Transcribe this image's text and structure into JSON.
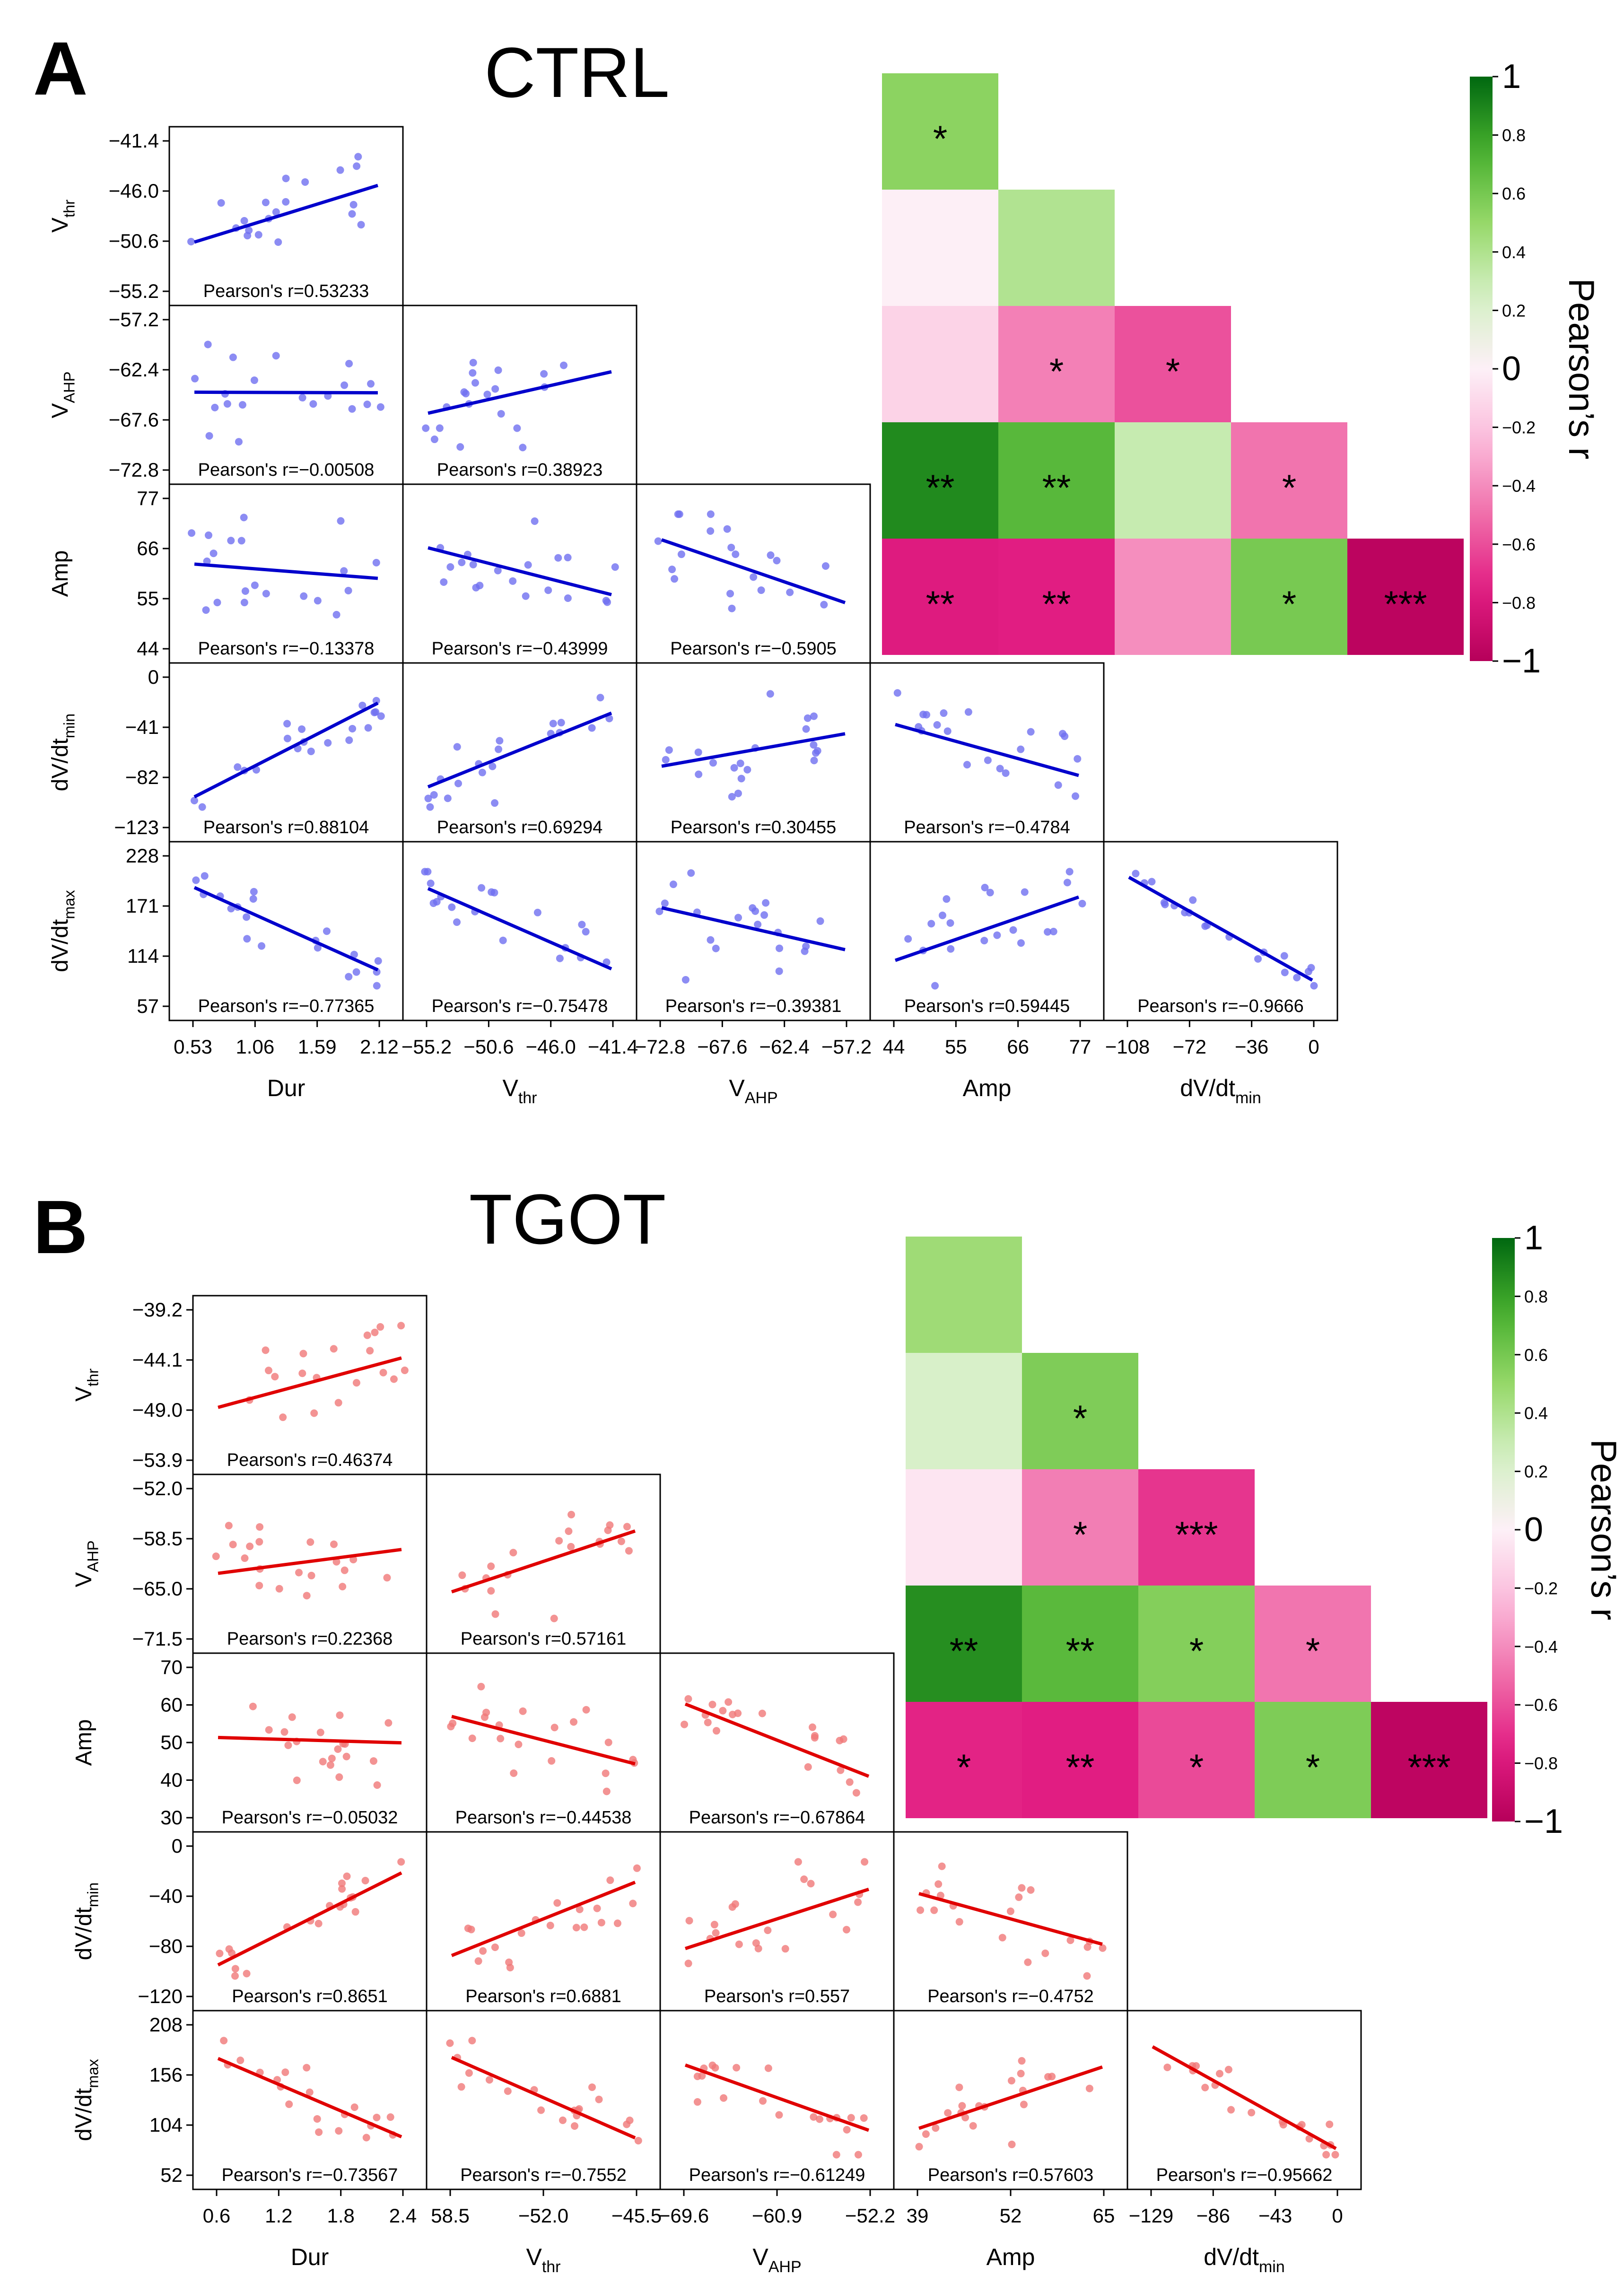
{
  "figure": {
    "colorbar_label": "Pearson’s r",
    "colorbar_ticks": [
      "1",
      "0.8",
      "0.6",
      "0.4",
      "0.2",
      "0",
      "−0.2",
      "−0.4",
      "−0.6",
      "−0.8",
      "−1"
    ],
    "variables": [
      "Dur",
      "Vthr",
      "VAHP",
      "Amp",
      "dV/dtmin",
      "dV/dtmax"
    ]
  },
  "chart_data": [
    {
      "panel": "A",
      "title": "CTRL",
      "type": "scatter",
      "point_color": "#6f6ff0",
      "line_color": "#0000cc",
      "row_labels": [
        {
          "base": "V",
          "sub": "thr"
        },
        {
          "base": "V",
          "sub": "AHP"
        },
        {
          "base": "Amp",
          "sub": ""
        },
        {
          "base": "dV/dt",
          "sub": "min"
        },
        {
          "base": "dV/dt",
          "sub": "max"
        }
      ],
      "col_labels": [
        {
          "base": "Dur",
          "sub": ""
        },
        {
          "base": "V",
          "sub": "thr"
        },
        {
          "base": "V",
          "sub": "AHP"
        },
        {
          "base": "Amp",
          "sub": ""
        },
        {
          "base": "dV/dt",
          "sub": "min"
        }
      ],
      "y_ticks": [
        [
          "−41.4",
          "−46.0",
          "−50.6",
          "−55.2"
        ],
        [
          "−57.2",
          "−62.4",
          "−67.6",
          "−72.8"
        ],
        [
          "77",
          "66",
          "55",
          "44"
        ],
        [
          "0",
          "−41",
          "−82",
          "−123"
        ],
        [
          "228",
          "171",
          "114",
          "57"
        ]
      ],
      "x_ticks": [
        [
          "0.53",
          "1.06",
          "1.59",
          "2.12"
        ],
        [
          "−55.2",
          "−50.6",
          "−46.0",
          "−41.4"
        ],
        [
          "−72.8",
          "−67.6",
          "−62.4",
          "−57.2"
        ],
        [
          "44",
          "55",
          "66",
          "77"
        ],
        [
          "−108",
          "−72",
          "−36",
          "0"
        ]
      ],
      "cells": [
        [
          {
            "r": 0.53233,
            "label": "Pearson's r=0.53233",
            "stars": "*"
          }
        ],
        [
          {
            "r": -0.00508,
            "label": "Pearson's r=−0.00508",
            "stars": ""
          },
          {
            "r": 0.38923,
            "label": "Pearson's r=0.38923",
            "stars": ""
          }
        ],
        [
          {
            "r": -0.13378,
            "label": "Pearson's r=−0.13378",
            "stars": ""
          },
          {
            "r": -0.43999,
            "label": "Pearson's r=−0.43999",
            "stars": "*"
          },
          {
            "r": -0.5905,
            "label": "Pearson's r=−0.5905",
            "stars": "*"
          }
        ],
        [
          {
            "r": 0.88104,
            "label": "Pearson's r=0.88104",
            "stars": "**"
          },
          {
            "r": 0.69294,
            "label": "Pearson's r=0.69294",
            "stars": "**"
          },
          {
            "r": 0.30455,
            "label": "Pearson's r=0.30455",
            "stars": ""
          },
          {
            "r": -0.4784,
            "label": "Pearson's r=−0.4784",
            "stars": "*"
          }
        ],
        [
          {
            "r": -0.77365,
            "label": "Pearson's r=−0.77365",
            "stars": "**"
          },
          {
            "r": -0.75478,
            "label": "Pearson's r=−0.75478",
            "stars": "**"
          },
          {
            "r": -0.39381,
            "label": "Pearson's r=−0.39381",
            "stars": ""
          },
          {
            "r": 0.59445,
            "label": "Pearson's r=0.59445",
            "stars": "*"
          },
          {
            "r": -0.9666,
            "label": "Pearson's r=−0.9666",
            "stars": "***"
          }
        ]
      ]
    },
    {
      "panel": "B",
      "title": "TGOT",
      "type": "scatter",
      "point_color": "#f07878",
      "line_color": "#e00000",
      "row_labels": [
        {
          "base": "V",
          "sub": "thr"
        },
        {
          "base": "V",
          "sub": "AHP"
        },
        {
          "base": "Amp",
          "sub": ""
        },
        {
          "base": "dV/dt",
          "sub": "min"
        },
        {
          "base": "dV/dt",
          "sub": "max"
        }
      ],
      "col_labels": [
        {
          "base": "Dur",
          "sub": ""
        },
        {
          "base": "V",
          "sub": "thr"
        },
        {
          "base": "V",
          "sub": "AHP"
        },
        {
          "base": "Amp",
          "sub": ""
        },
        {
          "base": "dV/dt",
          "sub": "min"
        }
      ],
      "y_ticks": [
        [
          "−39.2",
          "−44.1",
          "−49.0",
          "−53.9"
        ],
        [
          "−52.0",
          "−58.5",
          "−65.0",
          "−71.5"
        ],
        [
          "70",
          "60",
          "50",
          "40",
          "30"
        ],
        [
          "0",
          "−40",
          "−80",
          "−120"
        ],
        [
          "208",
          "156",
          "104",
          "52"
        ]
      ],
      "x_ticks": [
        [
          "0.6",
          "1.2",
          "1.8",
          "2.4"
        ],
        [
          "58.5",
          "−52.0",
          "−45.5"
        ],
        [
          "−69.6",
          "−60.9",
          "−52.2"
        ],
        [
          "39",
          "52",
          "65"
        ],
        [
          "−129",
          "−86",
          "−43",
          "0"
        ]
      ],
      "cells": [
        [
          {
            "r": 0.46374,
            "label": "Pearson's r=0.46374",
            "stars": ""
          }
        ],
        [
          {
            "r": 0.22368,
            "label": "Pearson's r=0.22368",
            "stars": ""
          },
          {
            "r": 0.57161,
            "label": "Pearson's r=0.57161",
            "stars": "*"
          }
        ],
        [
          {
            "r": -0.05032,
            "label": "Pearson's r=−0.05032",
            "stars": ""
          },
          {
            "r": -0.44538,
            "label": "Pearson's r=−0.44538",
            "stars": "*"
          },
          {
            "r": -0.67864,
            "label": "Pearson's r=−0.67864",
            "stars": "***"
          }
        ],
        [
          {
            "r": 0.8651,
            "label": "Pearson's r=0.8651",
            "stars": "**"
          },
          {
            "r": 0.6881,
            "label": "Pearson's r=0.6881",
            "stars": "**"
          },
          {
            "r": 0.557,
            "label": "Pearson's r=0.557",
            "stars": "*"
          },
          {
            "r": -0.4752,
            "label": "Pearson's r=−0.4752",
            "stars": "*"
          }
        ],
        [
          {
            "r": -0.73567,
            "label": "Pearson's r=−0.73567",
            "stars": "*"
          },
          {
            "r": -0.7552,
            "label": "Pearson's r=−0.7552",
            "stars": "**"
          },
          {
            "r": -0.61249,
            "label": "Pearson's r=−0.61249",
            "stars": "*"
          },
          {
            "r": 0.57603,
            "label": "Pearson's r=0.57603",
            "stars": "*"
          },
          {
            "r": -0.95662,
            "label": "Pearson's r=−0.95662",
            "stars": "***"
          }
        ]
      ]
    }
  ]
}
